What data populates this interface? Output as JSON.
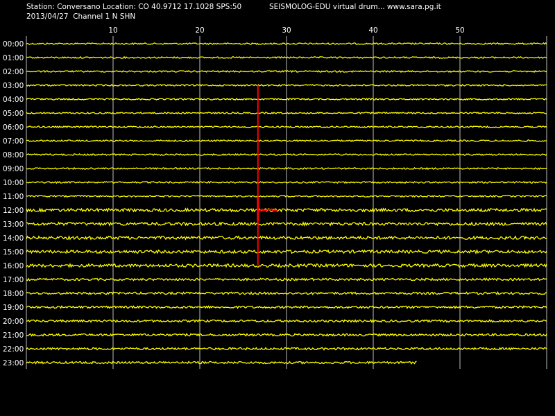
{
  "header": {
    "station_line": "Station: Conversano Location: CO 40.9712 17.1028 SPS:50",
    "app_line": "SEISMOLOG-EDU virtual drum... www.sara.pg.it",
    "date_line": "2013/04/27  Channel 1 N SHN"
  },
  "drum": {
    "minute_ticks": [
      "10",
      "20",
      "30",
      "40",
      "50"
    ],
    "hour_labels": [
      "00:00",
      "01:00",
      "02:00",
      "03:00",
      "04:00",
      "05:00",
      "06:00",
      "07:00",
      "08:00",
      "09:00",
      "10:00",
      "11:00",
      "12:00",
      "13:00",
      "14:00",
      "15:00",
      "16:00",
      "17:00",
      "18:00",
      "19:00",
      "20:00",
      "21:00",
      "22:00",
      "23:00"
    ],
    "trace_color": "#ffff00",
    "grid_color": "#c0c0c0",
    "marker_color": "#ff0000",
    "last_trace_end_minute": 45,
    "marker": {
      "minute": 26.7,
      "from_hour": 3,
      "to_hour": 16,
      "event_hour": 12,
      "event_end_minute": 29
    }
  }
}
